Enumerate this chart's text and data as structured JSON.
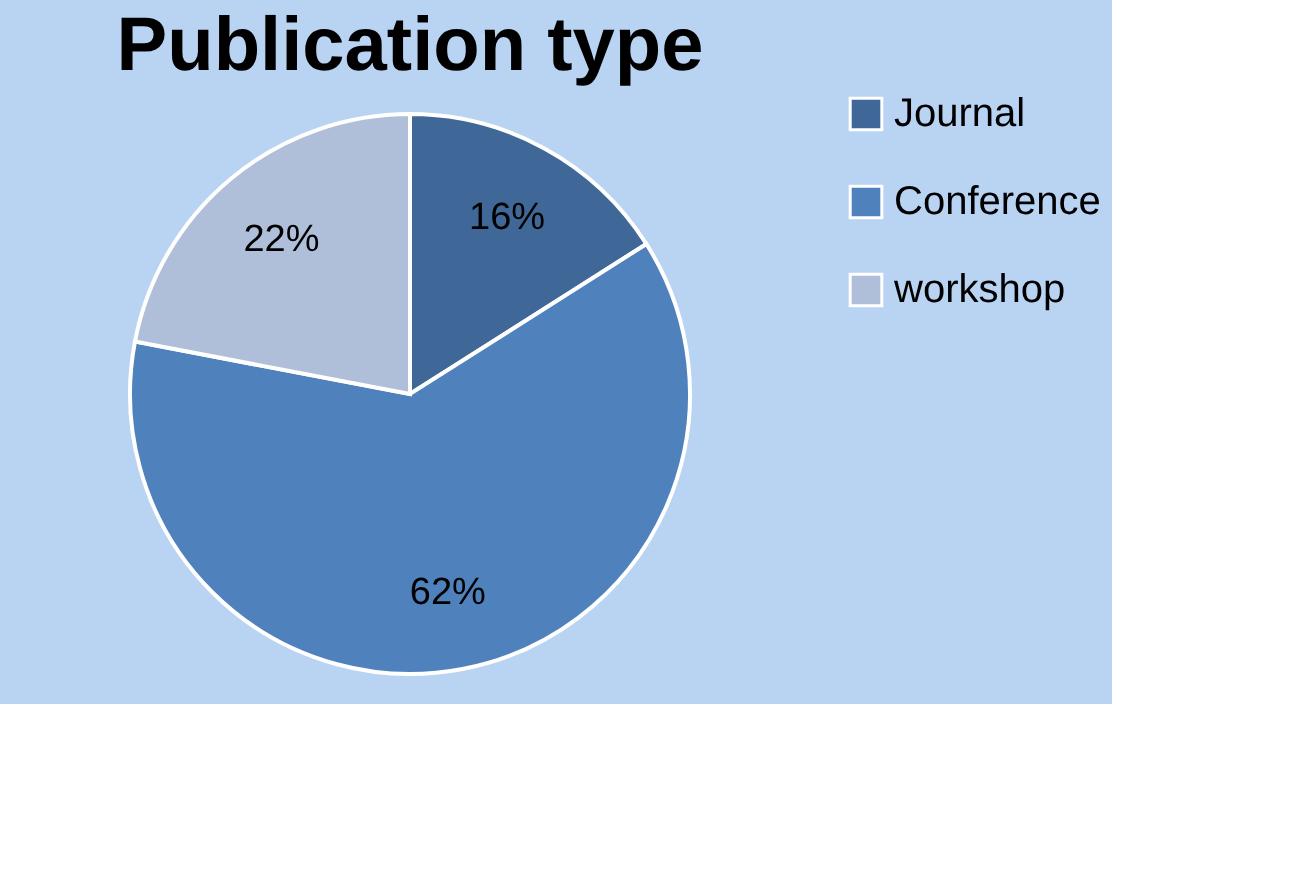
{
  "chart_data": {
    "type": "pie",
    "title": "Publication type",
    "categories": [
      "Journal",
      "Conference",
      "workshop"
    ],
    "values": [
      16,
      62,
      22
    ],
    "colors": [
      "#3f6797",
      "#4f81bd",
      "#b0bfd9"
    ],
    "value_labels": [
      "16%",
      "62%",
      "22%"
    ],
    "legend": "right"
  }
}
